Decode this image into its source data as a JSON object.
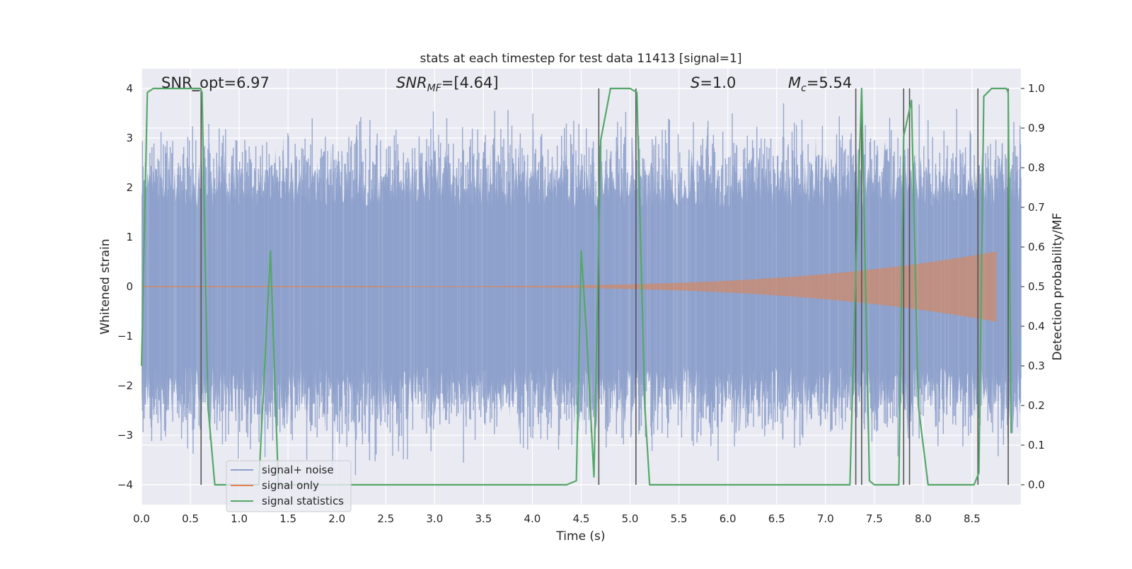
{
  "chart_data": {
    "type": "line",
    "title": "stats at each timestep for test data 11413 [signal=1]",
    "xlabel": "Time (s)",
    "ylabel_left": "Whitened strain",
    "ylabel_right": "Detection probability/MF",
    "xlim": [
      0.0,
      9.0
    ],
    "ylim_left": [
      -4.4,
      4.4
    ],
    "ylim_right": [
      -0.05,
      1.05
    ],
    "grid": true,
    "legend_position": "lower-left",
    "x_ticks": [
      "0.0",
      "0.5",
      "1.0",
      "1.5",
      "2.0",
      "2.5",
      "3.0",
      "3.5",
      "4.0",
      "4.5",
      "5.0",
      "5.5",
      "6.0",
      "6.5",
      "7.0",
      "7.5",
      "8.0",
      "8.5"
    ],
    "y_ticks_left": [
      "4",
      "3",
      "2",
      "1",
      "0",
      "−1",
      "−2",
      "−3",
      "−4"
    ],
    "y_ticks_right": [
      "1.0",
      "0.9",
      "0.8",
      "0.7",
      "0.6",
      "0.5",
      "0.4",
      "0.3",
      "0.2",
      "0.1",
      "0.0"
    ],
    "annotations": {
      "snr_opt": "SNR_opt=6.97",
      "snr_mf_main": "SNR",
      "snr_mf_sub": "MF",
      "snr_mf_value": "=[4.64]",
      "s_symbol": "S",
      "s_value": "=1.0",
      "mc_main": "M",
      "mc_sub": "c",
      "mc_value": "=5.54"
    },
    "series": [
      {
        "name": "signal+ noise",
        "axis": "left",
        "color": "#8da0cb",
        "envelope": {
          "description": "",
          "typical_abs": 1.6,
          "max_abs": 3.7,
          "min_value": -3.9
        }
      },
      {
        "name": "signal only",
        "axis": "left",
        "color": "#dd8452",
        "chirp": {
          "start_time": 2.5,
          "end_time": 8.75,
          "end_amplitude": 0.7
        }
      },
      {
        "name": "signal statistics",
        "axis": "right",
        "color": "#55a868",
        "x": [
          0.0,
          0.06,
          0.12,
          0.6,
          0.62,
          0.68,
          0.75,
          0.85,
          1.1,
          1.2,
          1.32,
          1.4,
          1.5,
          2.1,
          2.2,
          4.35,
          4.45,
          4.5,
          4.55,
          4.63,
          4.7,
          4.8,
          5.0,
          5.07,
          5.15,
          5.2,
          7.25,
          7.3,
          7.37,
          7.45,
          7.5,
          7.75,
          7.8,
          7.88,
          7.95,
          8.05,
          8.3,
          8.52,
          8.57,
          8.62,
          8.7,
          8.85,
          8.87,
          8.9
        ],
        "y": [
          0.3,
          0.99,
          1.0,
          1.0,
          0.99,
          0.2,
          0.0,
          0.0,
          0.0,
          0.0,
          0.59,
          0.0,
          0.0,
          0.0,
          0.0,
          0.0,
          0.01,
          0.59,
          0.4,
          0.02,
          0.87,
          1.0,
          1.0,
          0.99,
          0.2,
          0.0,
          0.0,
          0.45,
          1.0,
          0.01,
          0.0,
          0.0,
          0.88,
          0.97,
          0.2,
          0.0,
          0.0,
          0.0,
          0.03,
          0.98,
          1.0,
          1.0,
          0.99,
          0.13
        ]
      },
      {
        "name": "detection markers",
        "axis": "right",
        "color": "#555555",
        "x": [
          0.61,
          4.68,
          5.06,
          7.31,
          7.37,
          7.8,
          7.86,
          8.56,
          8.87
        ]
      }
    ]
  }
}
